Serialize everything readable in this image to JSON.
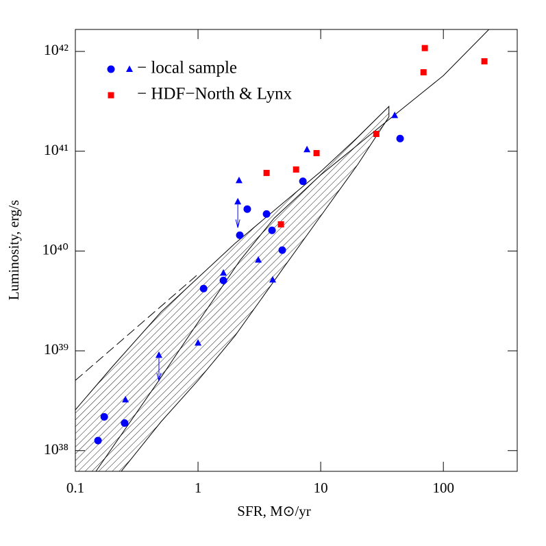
{
  "chart_data": {
    "type": "scatter",
    "xlabel": "SFR, M⊙/yr",
    "ylabel": "Luminosity, erg/s",
    "xscale": "log",
    "yscale": "log",
    "xlim": [
      0.1,
      400
    ],
    "ylim": [
      6.2e+37,
      1.66e+42
    ],
    "xticks": [
      0.1,
      1,
      10,
      100
    ],
    "yticks": [
      {
        "value": 1e+38,
        "label": "10³⁸"
      },
      {
        "value": 1e+39,
        "label": "10³⁹"
      },
      {
        "value": 1e+40,
        "label": "10⁴⁰"
      },
      {
        "value": 1e+41,
        "label": "10⁴¹"
      },
      {
        "value": 1e+42,
        "label": "10⁴²"
      }
    ],
    "series": [
      {
        "marker": "circle",
        "color": "#0000ff",
        "x": [
          0.153,
          0.172,
          0.252,
          1.11,
          1.61,
          2.19,
          2.52,
          3.62,
          4.01,
          4.86,
          7.16,
          44.4
        ],
        "values": [
          1.26e+38,
          2.18e+38,
          1.89e+38,
          4.2e+39,
          5.07e+39,
          1.44e+40,
          2.63e+40,
          2.35e+40,
          1.61e+40,
          1.02e+40,
          5e+40,
          1.34e+41
        ]
      },
      {
        "marker": "triangle",
        "color": "#0000ff",
        "x": [
          0.256,
          0.48,
          1.0,
          1.61,
          2.16,
          2.11,
          3.1,
          4.06,
          7.73,
          40.1
        ],
        "values": [
          3.24e+38,
          9.06e+38,
          1.2e+39,
          6.03e+39,
          5.1e+40,
          3.12e+40,
          8.15e+39,
          5.15e+39,
          1.04e+41,
          2.29e+41
        ]
      },
      {
        "marker": "square",
        "color": "#ff0000",
        "x": [
          3.62,
          4.74,
          6.3,
          9.25,
          28.4,
          68.9,
          70.6,
          216
        ],
        "values": [
          6.06e+40,
          1.85e+40,
          6.56e+40,
          9.57e+40,
          1.49e+41,
          6.18e+41,
          1.08e+42,
          7.96e+41
        ]
      }
    ],
    "legend": [
      {
        "label": "− local sample",
        "markers": [
          "circle",
          "triangle"
        ],
        "color": "#0000ff",
        "text_color": "#5a5aff"
      },
      {
        "label": "− HDF−North & Lynx",
        "markers": [
          "square"
        ],
        "color": "#ff0000",
        "text_color": "#ff5a5a"
      }
    ],
    "lines": [
      {
        "style": "solid",
        "x": [
          0.147,
          0.48,
          1,
          2.19,
          4.17,
          10,
          32.7,
          100,
          234
        ],
        "values": [
          6.2e+37,
          5.05e+38,
          1.93e+39,
          8e+39,
          2.13e+40,
          5.78e+40,
          1.89e+41,
          5.72e+41,
          1.65e+42
        ]
      },
      {
        "style": "dashed",
        "x": [
          0.1,
          1
        ],
        "values": [
          5.05e+38,
          5.85e+39
        ]
      }
    ],
    "band": {
      "x": [
        0.1,
        0.2,
        0.5,
        1,
        2,
        5,
        10,
        20,
        36
      ],
      "upper": [
        2.56e+38,
        6.92e+38,
        2.45e+39,
        5.4e+39,
        1.19e+40,
        3.07e+40,
        6.25e+40,
        1.38e+41,
        2.81e+41
      ],
      "lower": [
        1.66e+37,
        4.79e+37,
        1.95e+38,
        5.05e+38,
        1.41e+39,
        6.85e+39,
        2.24e+40,
        7.33e+40,
        2.21e+41
      ]
    }
  }
}
